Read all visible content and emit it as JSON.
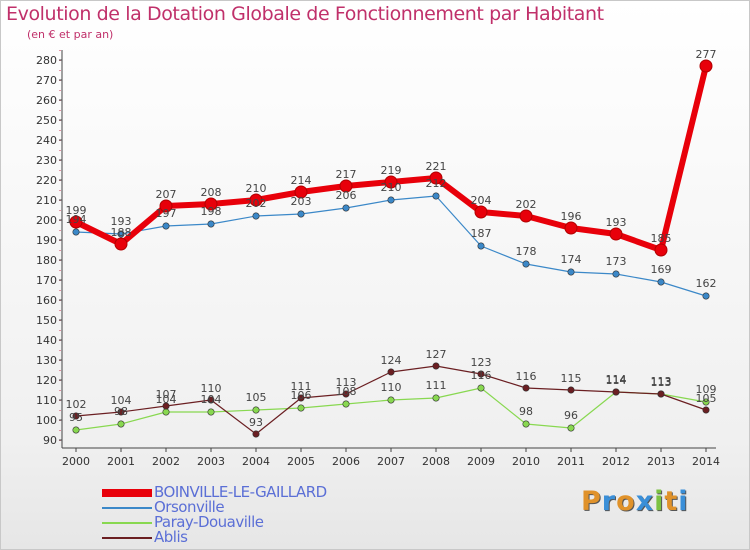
{
  "title": "Evolution de la Dotation Globale de Fonctionnement par Habitant",
  "subtitle": "(en € et par an)",
  "logo": {
    "text": "Proxiti",
    "letters": [
      "P",
      "r",
      "o",
      "x",
      "i",
      "t",
      "i"
    ],
    "colors": [
      "#e0922a",
      "#3a8fd8",
      "#e0922a",
      "#3a8fd8",
      "#7cc242",
      "#e0922a",
      "#3a8fd8"
    ]
  },
  "chart_data": {
    "type": "line",
    "x": [
      2000,
      2001,
      2002,
      2003,
      2004,
      2005,
      2006,
      2007,
      2008,
      2009,
      2010,
      2011,
      2012,
      2013,
      2014
    ],
    "ylim": [
      90,
      280
    ],
    "yticks": [
      90,
      100,
      110,
      120,
      130,
      140,
      150,
      160,
      170,
      180,
      190,
      200,
      210,
      220,
      230,
      240,
      250,
      260,
      270,
      280
    ],
    "grid": false,
    "legend": "bottom",
    "series": [
      {
        "name": "BOINVILLE-LE-GAILLARD",
        "color": "#e8000a",
        "values": [
          199,
          188,
          207,
          208,
          210,
          214,
          217,
          219,
          221,
          204,
          202,
          196,
          193,
          185,
          277
        ]
      },
      {
        "name": "Orsonville",
        "color": "#3b88c8",
        "values": [
          194,
          193,
          197,
          198,
          202,
          203,
          206,
          210,
          212,
          187,
          178,
          174,
          173,
          169,
          162
        ]
      },
      {
        "name": "Paray-Douaville",
        "color": "#88d850",
        "values": [
          95,
          98,
          104,
          104,
          105,
          106,
          108,
          110,
          111,
          116,
          98,
          96,
          114,
          113,
          109
        ]
      },
      {
        "name": "Ablis",
        "color": "#6b1f22",
        "values": [
          102,
          104,
          107,
          110,
          93,
          111,
          113,
          124,
          127,
          123,
          116,
          115,
          114,
          113,
          105
        ]
      }
    ]
  }
}
